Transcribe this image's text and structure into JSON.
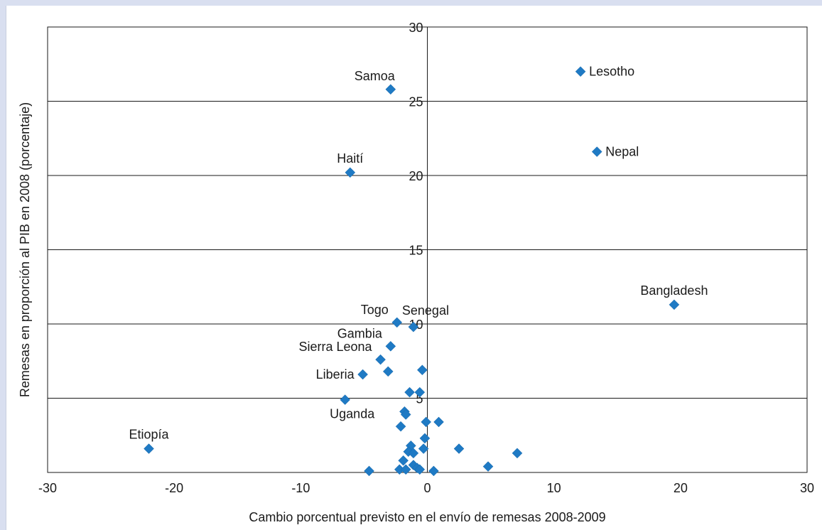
{
  "chart_data": {
    "type": "scatter",
    "title": "",
    "xlabel": "Cambio porcentual previsto en el envío de remesas 2008-2009",
    "ylabel": "Remesas en proporción al PIB en 2008 (porcentaje)",
    "xlim": [
      -30,
      30
    ],
    "ylim": [
      0,
      30
    ],
    "xticks": [
      "-30",
      "-20",
      "-10",
      "0",
      "10",
      "20",
      "30"
    ],
    "yticks": [
      "5",
      "10",
      "15",
      "20",
      "25",
      "30"
    ],
    "grid": "horizontal",
    "marker": "diamond",
    "color": "#1f7ac4",
    "points": [
      {
        "x": 12.1,
        "y": 27.0,
        "label": "Lesotho",
        "label_side": "right"
      },
      {
        "x": -2.9,
        "y": 25.8,
        "label": "Samoa",
        "label_side": "above-left"
      },
      {
        "x": 13.4,
        "y": 21.6,
        "label": "Nepal",
        "label_side": "right"
      },
      {
        "x": -6.1,
        "y": 20.2,
        "label": "Haití",
        "label_side": "above"
      },
      {
        "x": 19.5,
        "y": 11.3,
        "label": "Bangladesh",
        "label_side": "above"
      },
      {
        "x": -2.4,
        "y": 10.1,
        "label": "Togo",
        "label_side": "left-above"
      },
      {
        "x": -1.1,
        "y": 9.8,
        "label": "Senegal",
        "label_side": "above-right"
      },
      {
        "x": -2.9,
        "y": 8.5,
        "label": "Gambia",
        "label_side": "left-above"
      },
      {
        "x": -3.7,
        "y": 7.6,
        "label": "Sierra Leona",
        "label_side": "left-above"
      },
      {
        "x": -5.1,
        "y": 6.6,
        "label": "Liberia",
        "label_side": "left"
      },
      {
        "x": -6.5,
        "y": 4.9,
        "label": "Uganda",
        "label_side": "below"
      },
      {
        "x": -22.0,
        "y": 1.6,
        "label": "Etiopía",
        "label_side": "above"
      },
      {
        "x": -3.1,
        "y": 6.8
      },
      {
        "x": -0.4,
        "y": 6.9
      },
      {
        "x": -1.4,
        "y": 5.4
      },
      {
        "x": -0.6,
        "y": 5.4
      },
      {
        "x": -1.8,
        "y": 4.1
      },
      {
        "x": -1.7,
        "y": 3.9
      },
      {
        "x": -0.1,
        "y": 3.4
      },
      {
        "x": 0.9,
        "y": 3.4
      },
      {
        "x": -2.1,
        "y": 3.1
      },
      {
        "x": -0.2,
        "y": 2.3
      },
      {
        "x": -1.3,
        "y": 1.8
      },
      {
        "x": -1.5,
        "y": 1.4
      },
      {
        "x": -1.1,
        "y": 1.3
      },
      {
        "x": -0.3,
        "y": 1.6
      },
      {
        "x": 2.5,
        "y": 1.6
      },
      {
        "x": 7.1,
        "y": 1.3
      },
      {
        "x": -1.9,
        "y": 0.8
      },
      {
        "x": -1.1,
        "y": 0.5
      },
      {
        "x": -0.8,
        "y": 0.3
      },
      {
        "x": -2.2,
        "y": 0.2
      },
      {
        "x": -1.7,
        "y": 0.2
      },
      {
        "x": -0.6,
        "y": 0.2
      },
      {
        "x": -4.6,
        "y": 0.1
      },
      {
        "x": 0.5,
        "y": 0.1
      },
      {
        "x": 4.8,
        "y": 0.4
      }
    ]
  }
}
